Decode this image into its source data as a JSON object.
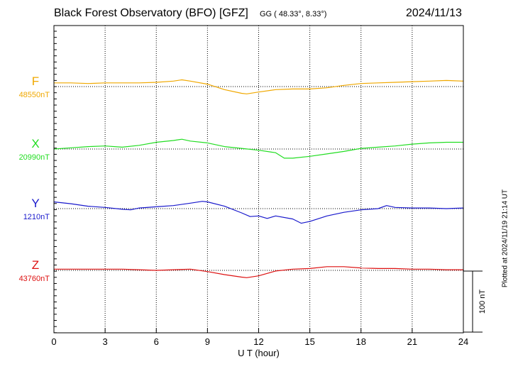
{
  "header": {
    "title": "Black Forest Observatory (BFO)  [GFZ]",
    "coords": "GG ( 48.33°,   8.33°)",
    "date": "2024/11/13"
  },
  "plotted_on": "Plotted at 2024/11/19 21:14 UT",
  "chart_data": {
    "type": "line",
    "title": "Black Forest Observatory (BFO)  [GFZ]",
    "xlabel": "U T (hour)",
    "xlim": [
      0,
      24
    ],
    "xticks": [
      "0",
      "3",
      "6",
      "9",
      "12",
      "15",
      "18",
      "21",
      "24"
    ],
    "grid": true,
    "scale_bar": {
      "label": "100 nT",
      "value_nT": 100
    },
    "series": [
      {
        "name": "F",
        "baseline_label": "48550nT",
        "baseline": 48550,
        "color": "#f0a800",
        "x": [
          0,
          1,
          2,
          3,
          4,
          5,
          6,
          7,
          7.5,
          8,
          9,
          10,
          11,
          11.3,
          12,
          13,
          14,
          15,
          16,
          17,
          18,
          19,
          20,
          21,
          22,
          23,
          24
        ],
        "y": [
          48556,
          48556,
          48555,
          48556,
          48556,
          48556,
          48557,
          48559,
          48561,
          48559,
          48554,
          48545,
          48539,
          48538,
          48541,
          48545,
          48546,
          48546,
          48548,
          48552,
          48555,
          48556,
          48557,
          48558,
          48559,
          48560,
          48559
        ]
      },
      {
        "name": "X",
        "baseline_label": "20990nT",
        "baseline": 20990,
        "color": "#22dd22",
        "x": [
          0,
          1,
          2,
          3,
          4,
          5,
          6,
          7,
          7.5,
          8,
          9,
          10,
          11,
          12,
          13,
          13.5,
          14,
          15,
          16,
          17,
          18,
          19,
          20,
          21,
          22,
          23,
          24
        ],
        "y": [
          20990,
          20992,
          20994,
          20995,
          20993,
          20996,
          21001,
          21004,
          21006,
          21003,
          21000,
          20994,
          20991,
          20988,
          20984,
          20975,
          20975,
          20978,
          20982,
          20986,
          20991,
          20993,
          20995,
          20998,
          21000,
          21001,
          21001
        ]
      },
      {
        "name": "Y",
        "baseline_label": "1210nT",
        "baseline": 1210,
        "color": "#1818cc",
        "x": [
          0,
          1,
          2,
          3,
          4,
          4.5,
          5,
          6,
          7,
          8,
          8.7,
          9,
          10,
          11,
          11.5,
          12,
          12.5,
          13,
          14,
          14.5,
          15,
          16,
          17,
          18,
          19,
          19.5,
          20,
          21,
          22,
          23,
          24
        ],
        "y": [
          1221,
          1218,
          1214,
          1212,
          1209,
          1208,
          1211,
          1213,
          1215,
          1219,
          1222,
          1221,
          1214,
          1203,
          1197,
          1198,
          1194,
          1198,
          1193,
          1186,
          1189,
          1198,
          1204,
          1208,
          1210,
          1215,
          1212,
          1211,
          1211,
          1210,
          1211
        ]
      },
      {
        "name": "Z",
        "baseline_label": "43760nT",
        "baseline": 43760,
        "color": "#dd1111",
        "x": [
          0,
          1,
          2,
          3,
          4,
          5,
          6,
          7,
          8,
          9,
          10,
          11,
          11.3,
          12,
          13,
          14,
          15,
          16,
          16.5,
          17,
          18,
          19,
          20,
          21,
          22,
          23,
          24
        ],
        "y": [
          43762,
          43762,
          43762,
          43762,
          43762,
          43761,
          43760,
          43761,
          43762,
          43758,
          43753,
          43749,
          43748,
          43751,
          43759,
          43762,
          43763,
          43766,
          43766,
          43766,
          43764,
          43763,
          43763,
          43762,
          43762,
          43761,
          43761
        ]
      }
    ]
  }
}
